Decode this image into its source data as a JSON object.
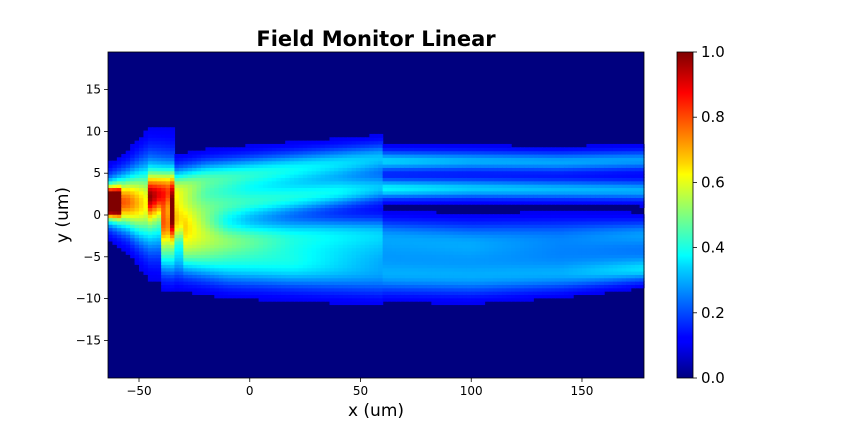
{
  "chart_data": {
    "type": "heatmap",
    "title": "Field Monitor Linear",
    "xlabel": "x (um)",
    "ylabel": "y (um)",
    "xlim": [
      -64,
      178
    ],
    "ylim": [
      -19.5,
      19.5
    ],
    "xticks": [
      -50,
      0,
      50,
      100,
      150
    ],
    "xtick_labels": [
      "−50",
      "0",
      "50",
      "100",
      "150"
    ],
    "yticks": [
      15,
      10,
      5,
      0,
      -5,
      -10,
      -15
    ],
    "ytick_labels": [
      "15",
      "10",
      "5",
      "0",
      "−5",
      "−10",
      "−15"
    ],
    "colormap": "jet",
    "colorbar": {
      "range": [
        0.0,
        1.0
      ],
      "ticks": [
        0.0,
        0.2,
        0.4,
        0.6,
        0.8,
        1.0
      ],
      "tick_labels": [
        "0.0",
        "0.2",
        "0.4",
        "0.6",
        "0.8",
        "1.0"
      ]
    },
    "background_value": 0.0,
    "features": [
      {
        "x": [
          -64,
          -58
        ],
        "y": [
          1.6,
          1.6
        ],
        "intensity": [
          1.0,
          1.0
        ],
        "width": [
          0.9,
          0.9
        ]
      },
      {
        "x": [
          -64,
          -55,
          -45,
          -35
        ],
        "y": [
          1.6,
          1.6,
          1.4,
          1.2
        ],
        "intensity": [
          0.82,
          0.75,
          0.55,
          0.38
        ],
        "width": [
          1.6,
          2.2,
          3.4,
          3.6
        ]
      },
      {
        "x": [
          -45,
          -20,
          20,
          60
        ],
        "y": [
          2.5,
          4.4,
          5.6,
          6.8
        ],
        "intensity": [
          0.45,
          0.36,
          0.3,
          0.24
        ],
        "width": [
          1.6,
          1.4,
          1.3,
          1.2
        ]
      },
      {
        "x": [
          -35,
          0,
          40,
          60
        ],
        "y": [
          0.5,
          1.6,
          2.8,
          3.3
        ],
        "intensity": [
          0.42,
          0.34,
          0.3,
          0.24
        ],
        "width": [
          1.8,
          1.4,
          1.2,
          1.1
        ]
      },
      {
        "x": [
          -40,
          -10,
          30,
          60
        ],
        "y": [
          -1.2,
          -2.4,
          -2.0,
          -1.8
        ],
        "intensity": [
          0.36,
          0.26,
          0.22,
          0.18
        ],
        "width": [
          1.6,
          1.4,
          1.3,
          1.2
        ]
      },
      {
        "x": [
          -30,
          20,
          60
        ],
        "y": [
          -3.5,
          -4.4,
          -4.0
        ],
        "intensity": [
          0.22,
          0.2,
          0.18
        ],
        "width": [
          1.6,
          1.6,
          1.5
        ]
      },
      {
        "x": [
          -40,
          -10,
          30,
          60
        ],
        "y": [
          -4.5,
          -6.2,
          -6.8,
          -7.2
        ],
        "intensity": [
          0.24,
          0.22,
          0.2,
          0.18
        ],
        "width": [
          1.8,
          1.6,
          1.6,
          1.6
        ]
      },
      {
        "x": [
          60,
          100,
          140,
          178
        ],
        "y": [
          6.5,
          6.5,
          6.4,
          6.6
        ],
        "intensity": [
          0.26,
          0.22,
          0.21,
          0.2
        ],
        "width": [
          0.8,
          0.8,
          0.8,
          0.8
        ]
      },
      {
        "x": [
          60,
          100,
          140,
          178
        ],
        "y": [
          3.2,
          3.2,
          3.1,
          3.0
        ],
        "intensity": [
          0.3,
          0.25,
          0.23,
          0.22
        ],
        "width": [
          0.8,
          0.8,
          0.8,
          0.8
        ]
      },
      {
        "x": [
          60,
          100,
          140,
          178
        ],
        "y": [
          -2.2,
          -2.6,
          -2.4,
          -2.2
        ],
        "intensity": [
          0.16,
          0.15,
          0.14,
          0.18
        ],
        "width": [
          1.2,
          1.3,
          1.3,
          1.1
        ]
      },
      {
        "x": [
          60,
          100,
          140,
          178
        ],
        "y": [
          -4.4,
          -4.6,
          -4.8,
          -4.8
        ],
        "intensity": [
          0.14,
          0.13,
          0.12,
          0.13
        ],
        "width": [
          1.3,
          1.3,
          1.3,
          1.3
        ]
      },
      {
        "x": [
          60,
          100,
          140,
          178
        ],
        "y": [
          -7.2,
          -7.4,
          -7.2,
          -6.6
        ],
        "intensity": [
          0.2,
          0.2,
          0.19,
          0.22
        ],
        "width": [
          1.4,
          1.4,
          1.2,
          0.9
        ]
      }
    ]
  }
}
